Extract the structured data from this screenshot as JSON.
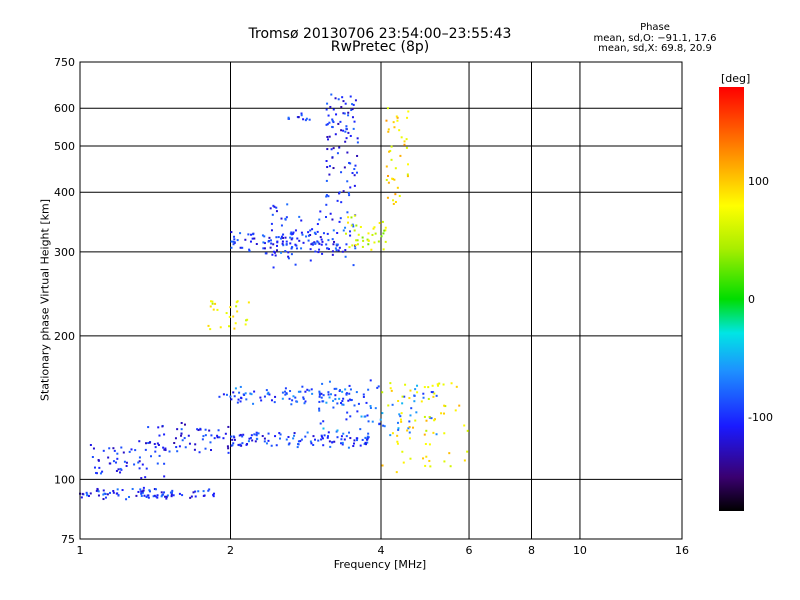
{
  "chart_data": {
    "type": "scatter",
    "title": "Tromsø 20130706 23:54:00–23:55:43",
    "subtitle": "RwPretec (8p)",
    "xlabel": "Frequency [MHz]",
    "ylabel": "Stationary phase Virtual Height [km]",
    "x_scale": "log",
    "y_scale": "log",
    "xlim": [
      1,
      16
    ],
    "ylim": [
      75,
      750
    ],
    "x_ticks": [
      "1",
      "2",
      "4",
      "6",
      "8",
      "10",
      "16"
    ],
    "x_tick_values": [
      1,
      2,
      4,
      6,
      8,
      10,
      16
    ],
    "y_ticks": [
      "75",
      "100",
      "200",
      "300",
      "400",
      "500",
      "600",
      "750"
    ],
    "y_tick_values": [
      75,
      100,
      200,
      300,
      400,
      500,
      600,
      750
    ],
    "grid": true,
    "colorbar": {
      "label": "[deg]",
      "range": [
        -180,
        180
      ],
      "ticks": [
        "100",
        "0",
        "-100"
      ],
      "tick_values": [
        100,
        0,
        -100
      ]
    },
    "phase_header": {
      "title": "Phase",
      "o_stats": "mean, sd,O: −91.1, 17.6",
      "x_stats": "mean, sd,X:  69.8, 20.9"
    },
    "traces": [
      {
        "f0": 1.0,
        "f1": 1.9,
        "h0": 92,
        "h1": 95,
        "phase": -100,
        "n": 90
      },
      {
        "f0": 1.05,
        "f1": 1.5,
        "h0": 102,
        "h1": 118,
        "phase": -100,
        "n": 55
      },
      {
        "f0": 1.3,
        "f1": 2.0,
        "h0": 115,
        "h1": 130,
        "phase": -105,
        "n": 60
      },
      {
        "f0": 2.0,
        "f1": 3.8,
        "h0": 118,
        "h1": 125,
        "phase": -95,
        "n": 110
      },
      {
        "f0": 1.9,
        "f1": 3.5,
        "h0": 145,
        "h1": 155,
        "phase": -85,
        "n": 90
      },
      {
        "f0": 3.0,
        "f1": 5.2,
        "h0": 125,
        "h1": 160,
        "phase": -75,
        "n": 80
      },
      {
        "f0": 4.0,
        "f1": 6.0,
        "h0": 105,
        "h1": 160,
        "phase": 80,
        "n": 70
      },
      {
        "f0": 1.8,
        "f1": 2.2,
        "h0": 205,
        "h1": 240,
        "phase": 70,
        "n": 25
      },
      {
        "f0": 2.0,
        "f1": 3.4,
        "h0": 300,
        "h1": 330,
        "phase": -100,
        "n": 110
      },
      {
        "f0": 2.4,
        "f1": 3.6,
        "h0": 280,
        "h1": 380,
        "phase": -95,
        "n": 70
      },
      {
        "f0": 3.1,
        "f1": 3.6,
        "h0": 380,
        "h1": 640,
        "phase": -105,
        "n": 90
      },
      {
        "f0": 3.4,
        "f1": 4.1,
        "h0": 300,
        "h1": 360,
        "phase": 60,
        "n": 40
      },
      {
        "f0": 4.1,
        "f1": 4.6,
        "h0": 380,
        "h1": 600,
        "phase": 90,
        "n": 40
      },
      {
        "f0": 2.6,
        "f1": 2.9,
        "h0": 565,
        "h1": 580,
        "phase": -100,
        "n": 12
      }
    ]
  }
}
